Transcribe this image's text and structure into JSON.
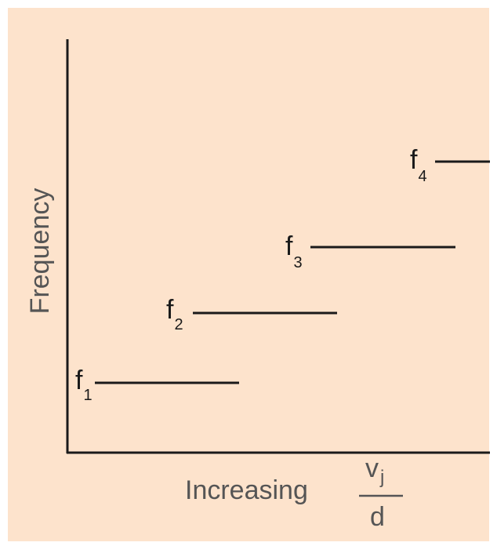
{
  "colors": {
    "background": "#fde3cc",
    "axis": "#1a1a1a",
    "level_line": "#1a1a1a",
    "axis_label_text": "#555555"
  },
  "axes": {
    "y_label": "Frequency",
    "x_label_word": "Increasing",
    "x_fraction": {
      "numerator": "v",
      "numerator_subscript": "j",
      "denominator": "d"
    }
  },
  "levels": [
    {
      "symbol": "f",
      "subscript": "1"
    },
    {
      "symbol": "f",
      "subscript": "2"
    },
    {
      "symbol": "f",
      "subscript": "3"
    },
    {
      "symbol": "f",
      "subscript": "4"
    }
  ]
}
